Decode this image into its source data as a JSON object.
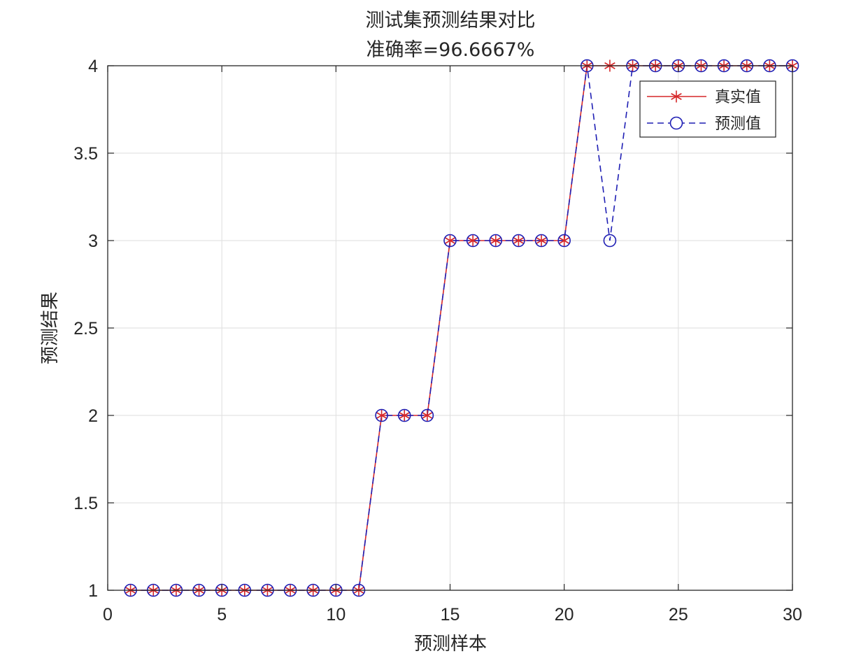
{
  "chart_data": {
    "type": "line",
    "title": "测试集预测结果对比",
    "subtitle": "准确率=96.6667%",
    "xlabel": "预测样本",
    "ylabel": "预测结果",
    "xlim": [
      0,
      30
    ],
    "ylim": [
      1,
      4
    ],
    "xticks": [
      0,
      5,
      10,
      15,
      20,
      25,
      30
    ],
    "yticks": [
      1,
      1.5,
      2,
      2.5,
      3,
      3.5,
      4
    ],
    "xtick_labels": [
      "0",
      "5",
      "10",
      "15",
      "20",
      "25",
      "30"
    ],
    "ytick_labels": [
      "1",
      "1.5",
      "2",
      "2.5",
      "3",
      "3.5",
      "4"
    ],
    "grid": true,
    "legend_position": "top-right",
    "x": [
      1,
      2,
      3,
      4,
      5,
      6,
      7,
      8,
      9,
      10,
      11,
      12,
      13,
      14,
      15,
      16,
      17,
      18,
      19,
      20,
      21,
      22,
      23,
      24,
      25,
      26,
      27,
      28,
      29,
      30
    ],
    "series": [
      {
        "name": "真实值",
        "color": "#d62728",
        "marker": "asterisk",
        "line_style": "solid",
        "values": [
          1,
          1,
          1,
          1,
          1,
          1,
          1,
          1,
          1,
          1,
          1,
          2,
          2,
          2,
          3,
          3,
          3,
          3,
          3,
          3,
          4,
          4,
          4,
          4,
          4,
          4,
          4,
          4,
          4,
          4
        ]
      },
      {
        "name": "预测值",
        "color": "#1f1fb4",
        "marker": "circle",
        "line_style": "dashed",
        "values": [
          1,
          1,
          1,
          1,
          1,
          1,
          1,
          1,
          1,
          1,
          1,
          2,
          2,
          2,
          3,
          3,
          3,
          3,
          3,
          3,
          4,
          3,
          4,
          4,
          4,
          4,
          4,
          4,
          4,
          4
        ]
      }
    ]
  }
}
